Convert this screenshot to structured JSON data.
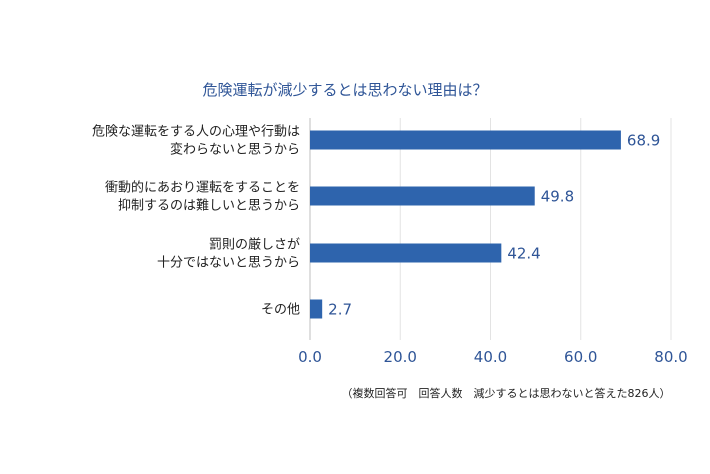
{
  "chart_data": {
    "type": "bar",
    "orientation": "horizontal",
    "title": "危険運転が減少するとは思わない理由は？",
    "categories": [
      [
        "危険な運転をする人の心理や行動は",
        "変わらないと思うから"
      ],
      [
        "衝動的にあおり運転をすることを",
        "抑制するのは難しいと思うから"
      ],
      [
        "罰則の厳しさが",
        "十分ではないと思うから"
      ],
      [
        "その他"
      ]
    ],
    "values": [
      68.9,
      49.8,
      42.4,
      2.7
    ],
    "value_labels": [
      "68.9",
      "49.8",
      "42.4",
      "2.7"
    ],
    "xlim": [
      0,
      80
    ],
    "xticks": [
      "0.0",
      "20.0",
      "40.0",
      "60.0",
      "80.0"
    ],
    "grid": true,
    "bar_color": "#2e64ad",
    "text_color": "#2f5597"
  },
  "footnote": "（複数回答可　回答人数　減少するとは思わないと答えた826人）"
}
